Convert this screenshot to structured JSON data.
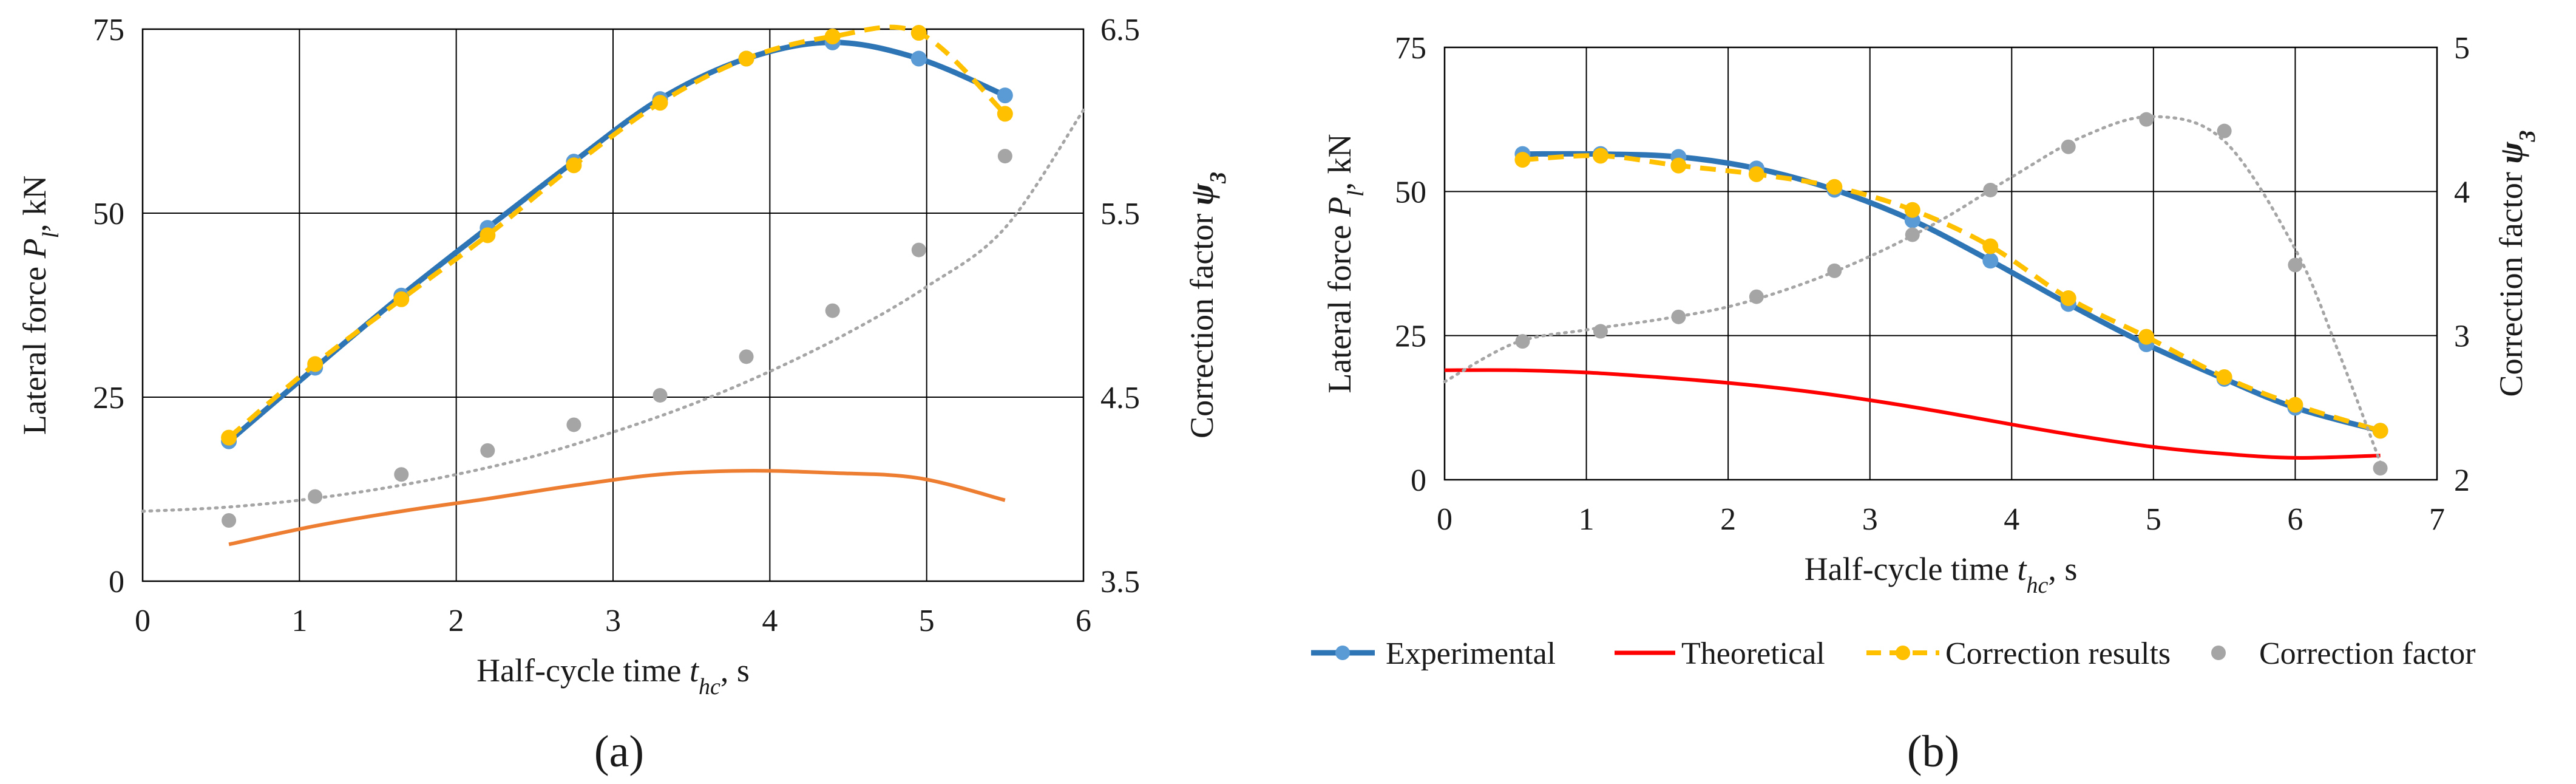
{
  "figure": {
    "panel_labels": [
      "(a)",
      "(b)"
    ]
  },
  "legend": [
    {
      "label": "Experimental",
      "color": "#2e75b6",
      "marker": "#5b9bd5",
      "style": "solid-marker"
    },
    {
      "label": "Theoretical",
      "color": "#ff0000",
      "style": "solid"
    },
    {
      "label": "Correction results",
      "color": "#ffc000",
      "style": "dashed-marker"
    },
    {
      "label": "Correction factor",
      "color": "#a5a5a5",
      "style": "dot-marker"
    }
  ],
  "chart_data": [
    {
      "panel": "(a)",
      "type": "line",
      "xlabel": "Half-cycle time t_hc, s",
      "xlabel_main": "Half-cycle time ",
      "xlabel_var": "t",
      "xlabel_sub": "hc",
      "xlabel_unit": ", s",
      "ylabel_main": "Lateral force ",
      "ylabel_var": "P",
      "ylabel_sub": "l",
      "ylabel_unit": ",  kN",
      "y2label_main": "Correction factor ",
      "y2label_var": "ψ",
      "y2label_sub": "3",
      "xlim": [
        0,
        6
      ],
      "ylim": [
        0,
        75
      ],
      "y2lim": [
        3.5,
        6.5
      ],
      "xticks": [
        "0",
        "1",
        "2",
        "3",
        "4",
        "5",
        "6"
      ],
      "yticks": [
        "0",
        "25",
        "50",
        "75"
      ],
      "y2ticks": [
        "3.5",
        "4.5",
        "5.5",
        "6.5"
      ],
      "series": [
        {
          "name": "Experimental",
          "color": "#2e75b6",
          "marker_color": "#5b9bd5",
          "x": [
            0.55,
            1.1,
            1.65,
            2.2,
            2.75,
            3.3,
            3.85,
            4.4,
            4.95,
            5.5
          ],
          "values": [
            19,
            29,
            38.8,
            48,
            57,
            65.5,
            71,
            73.2,
            71,
            66
          ]
        },
        {
          "name": "Theoretical",
          "color": "#ed7d31",
          "x": [
            0.55,
            1.1,
            1.65,
            2.2,
            2.75,
            3.3,
            3.85,
            4.4,
            4.95,
            5.5
          ],
          "values": [
            5,
            7.5,
            9.5,
            11.2,
            13,
            14.5,
            15,
            14.7,
            14,
            11
          ]
        },
        {
          "name": "Correction results",
          "color": "#ffc000",
          "x": [
            0.55,
            1.1,
            1.65,
            2.2,
            2.75,
            3.3,
            3.85,
            4.4,
            4.95,
            5.5
          ],
          "values": [
            19.5,
            29.5,
            38.3,
            47,
            56.5,
            65,
            71,
            74,
            74.5,
            63.5
          ]
        },
        {
          "name": "Correction factor",
          "color": "#a5a5a5",
          "axis": "secondary",
          "x": [
            0.55,
            1.1,
            1.65,
            2.2,
            2.75,
            3.3,
            3.85,
            4.4,
            4.95,
            5.5
          ],
          "values": [
            3.83,
            3.96,
            4.08,
            4.21,
            4.35,
            4.51,
            4.72,
            4.97,
            5.3,
            5.81
          ]
        },
        {
          "name": "Correction factor trend",
          "color": "#a5a5a5",
          "axis": "secondary",
          "style": "dotted",
          "x": [
            0,
            0.5,
            1,
            1.5,
            2,
            2.5,
            3,
            3.5,
            4,
            4.5,
            5,
            5.5,
            6
          ],
          "values": [
            3.88,
            3.9,
            3.94,
            4.0,
            4.08,
            4.18,
            4.31,
            4.46,
            4.64,
            4.85,
            5.1,
            5.42,
            6.06
          ]
        }
      ]
    },
    {
      "panel": "(b)",
      "type": "line",
      "xlabel": "Half-cycle time t_hc, s",
      "xlabel_main": "Half-cycle time ",
      "xlabel_var": "t",
      "xlabel_sub": "hc",
      "xlabel_unit": ", s",
      "ylabel_main": "Lateral force ",
      "ylabel_var": "P",
      "ylabel_sub": "l",
      "ylabel_unit": ",  kN",
      "y2label_main": "Correction factor ",
      "y2label_var": "ψ",
      "y2label_sub": "3",
      "xlim": [
        0,
        7
      ],
      "ylim": [
        0,
        75
      ],
      "y2lim": [
        2,
        5
      ],
      "xticks": [
        "0",
        "1",
        "2",
        "3",
        "4",
        "5",
        "6",
        "7"
      ],
      "yticks": [
        "0",
        "25",
        "50",
        "75"
      ],
      "y2ticks": [
        "2",
        "3",
        "4",
        "5"
      ],
      "series": [
        {
          "name": "Experimental",
          "color": "#2e75b6",
          "marker_color": "#5b9bd5",
          "x": [
            0.55,
            1.1,
            1.65,
            2.2,
            2.75,
            3.3,
            3.85,
            4.4,
            4.95,
            5.5,
            6.0,
            6.6
          ],
          "values": [
            56.5,
            56.5,
            56,
            54,
            50.3,
            45,
            38,
            30.5,
            23.5,
            17.5,
            12.5,
            8.5
          ]
        },
        {
          "name": "Theoretical",
          "color": "#ff0000",
          "x": [
            0,
            0.5,
            1,
            1.5,
            2,
            2.5,
            3,
            3.5,
            4,
            4.5,
            5,
            5.5,
            6,
            6.6
          ],
          "values": [
            19,
            19,
            18.6,
            17.8,
            16.8,
            15.5,
            13.8,
            11.8,
            9.6,
            7.5,
            5.7,
            4.5,
            3.8,
            4.2
          ]
        },
        {
          "name": "Correction results",
          "color": "#ffc000",
          "x": [
            0.55,
            1.1,
            1.65,
            2.2,
            2.75,
            3.3,
            3.85,
            4.4,
            4.95,
            5.5,
            6.0,
            6.6
          ],
          "values": [
            55.5,
            56.2,
            54.5,
            53,
            50.8,
            46.8,
            40.5,
            31.5,
            24.8,
            17.8,
            13,
            8.5
          ]
        },
        {
          "name": "Correction factor",
          "color": "#a5a5a5",
          "axis": "secondary",
          "x": [
            0.55,
            1.1,
            1.65,
            2.2,
            2.75,
            3.3,
            3.85,
            4.4,
            4.95,
            5.5,
            6.0,
            6.6
          ],
          "values": [
            2.96,
            3.03,
            3.13,
            3.27,
            3.45,
            3.7,
            4.01,
            4.31,
            4.5,
            4.42,
            3.49,
            2.08
          ]
        },
        {
          "name": "Correction factor trend",
          "color": "#a5a5a5",
          "axis": "secondary",
          "style": "dotted",
          "x": [
            0,
            0.5,
            1,
            1.5,
            2,
            2.5,
            3,
            3.5,
            4,
            4.5,
            5,
            5.5,
            6,
            6.3,
            6.6
          ],
          "values": [
            2.68,
            2.95,
            3.04,
            3.11,
            3.2,
            3.35,
            3.55,
            3.8,
            4.1,
            4.38,
            4.52,
            4.35,
            3.6,
            2.9,
            2.12
          ]
        }
      ]
    }
  ]
}
